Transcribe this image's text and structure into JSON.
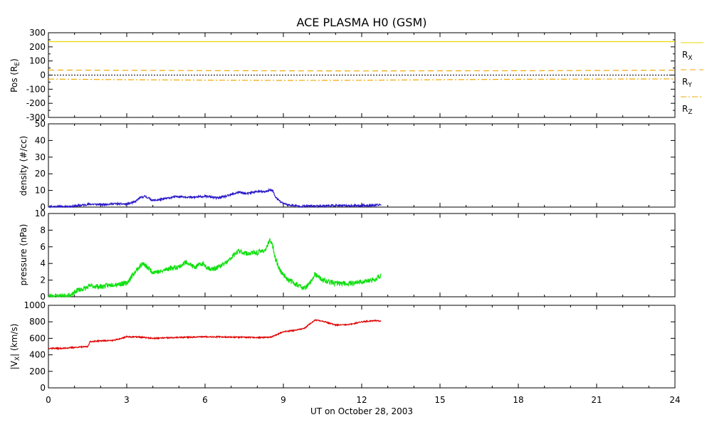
{
  "chart_data": {
    "title": "ACE PLASMA H0 (GSM)",
    "xlabel": "UT on October 28, 2003",
    "xlim": [
      0,
      24
    ],
    "xticks": [
      "0",
      "3",
      "6",
      "9",
      "12",
      "15",
      "18",
      "21",
      "24"
    ],
    "panels": [
      {
        "id": "pos",
        "type": "line",
        "ylabel": "Pos (R",
        "ylabel_sub": "E",
        "ylabel_end": ")",
        "ylim": [
          -300,
          300
        ],
        "yticks": [
          300,
          200,
          100,
          0,
          -100,
          -200,
          -300
        ],
        "zero_line": true,
        "legend": [
          {
            "label": "R",
            "sub": "X"
          },
          {
            "label": "R",
            "sub": "Y"
          },
          {
            "label": "R",
            "sub": "Z"
          }
        ],
        "series": [
          {
            "color": "#e8d800",
            "dash": "none",
            "x": [
              0,
              6,
              12,
              18,
              24
            ],
            "y": [
              237,
              237,
              237,
              237,
              237
            ]
          },
          {
            "color": "#f0a800",
            "dash": "8,5",
            "x": [
              0,
              3,
              6,
              9,
              12,
              15,
              18,
              21,
              24
            ],
            "y": [
              36,
              34,
              32,
              30,
              29,
              30,
              31,
              33,
              35
            ]
          },
          {
            "color": "#f0a800",
            "dash": "8,3,2,3",
            "x": [
              0,
              3,
              6,
              9,
              12,
              15,
              18,
              21,
              24
            ],
            "y": [
              -28,
              -33,
              -36,
              -38,
              -37,
              -33,
              -30,
              -28,
              -27
            ]
          }
        ]
      },
      {
        "id": "density",
        "type": "line",
        "ylabel": "density (#/cc)",
        "ylim": [
          0,
          50
        ],
        "yticks": [
          0,
          10,
          20,
          30,
          40,
          50
        ],
        "series": [
          {
            "color": "#2a18c8",
            "noise": 0.6,
            "seed": 11,
            "x": [
              0,
              0.5,
              1.0,
              1.3,
              1.6,
              2.0,
              2.5,
              3.0,
              3.3,
              3.5,
              3.7,
              4.0,
              4.3,
              4.6,
              5.0,
              5.5,
              6.0,
              6.5,
              6.8,
              7.0,
              7.3,
              7.6,
              8.0,
              8.3,
              8.5,
              8.6,
              8.7,
              8.9,
              9.2,
              9.6,
              10.0,
              10.5,
              11.0,
              11.5,
              12.0,
              12.5,
              12.75
            ],
            "y": [
              0.3,
              0.3,
              0.5,
              1.2,
              1.8,
              1.5,
              2.0,
              1.8,
              3.0,
              5.5,
              6.5,
              4.0,
              4.5,
              5.5,
              6.5,
              5.8,
              6.5,
              5.5,
              6.5,
              7.5,
              9.0,
              8.0,
              9.5,
              9.0,
              10.5,
              9.5,
              6.0,
              3.0,
              1.2,
              0.6,
              0.6,
              0.8,
              0.9,
              0.8,
              0.9,
              1.0,
              1.5
            ]
          }
        ]
      },
      {
        "id": "pressure",
        "type": "line",
        "ylabel": "pressure (nPa)",
        "ylim": [
          0,
          10
        ],
        "yticks": [
          0,
          2,
          4,
          6,
          8,
          10
        ],
        "series": [
          {
            "color": "#10e010",
            "noise": 0.3,
            "seed": 23,
            "x": [
              0,
              0.5,
              0.9,
              1.1,
              1.4,
              1.6,
              2.0,
              2.5,
              3.0,
              3.2,
              3.4,
              3.6,
              3.8,
              4.0,
              4.3,
              4.6,
              5.0,
              5.3,
              5.6,
              5.9,
              6.1,
              6.3,
              6.6,
              6.9,
              7.1,
              7.3,
              7.6,
              8.0,
              8.3,
              8.5,
              8.6,
              8.7,
              8.9,
              9.2,
              9.5,
              9.8,
              10.0,
              10.2,
              10.5,
              11.0,
              11.5,
              12.0,
              12.5,
              12.75
            ],
            "y": [
              0.1,
              0.1,
              0.2,
              0.8,
              1.0,
              1.3,
              1.2,
              1.5,
              1.6,
              2.5,
              3.3,
              4.0,
              3.5,
              3.0,
              3.0,
              3.4,
              3.6,
              4.2,
              3.5,
              4.0,
              3.5,
              3.3,
              3.7,
              4.3,
              5.0,
              5.5,
              5.2,
              5.3,
              5.6,
              6.8,
              6.0,
              4.5,
              3.0,
              2.0,
              1.5,
              1.0,
              1.5,
              2.7,
              2.0,
              1.6,
              1.6,
              1.8,
              2.0,
              2.6
            ]
          }
        ]
      },
      {
        "id": "vx",
        "type": "line",
        "ylabel": "|V",
        "ylabel_sub": "X",
        "ylabel_end": "| (km/s)",
        "ylim": [
          0,
          1000
        ],
        "yticks": [
          0,
          200,
          400,
          600,
          800,
          1000
        ],
        "series": [
          {
            "color": "#e00000",
            "noise": 7,
            "seed": 37,
            "x": [
              0,
              0.5,
              1.0,
              1.5,
              1.6,
              2.0,
              2.5,
              2.8,
              3.0,
              3.5,
              4.0,
              5.0,
              6.0,
              7.0,
              8.0,
              8.5,
              8.7,
              9.0,
              9.5,
              9.8,
              10.0,
              10.2,
              10.5,
              10.8,
              11.0,
              11.5,
              12.0,
              12.5,
              12.75
            ],
            "y": [
              480,
              478,
              490,
              500,
              560,
              570,
              575,
              600,
              620,
              615,
              600,
              610,
              620,
              615,
              610,
              612,
              640,
              680,
              700,
              720,
              770,
              820,
              810,
              780,
              760,
              765,
              800,
              815,
              810
            ]
          }
        ]
      }
    ]
  }
}
